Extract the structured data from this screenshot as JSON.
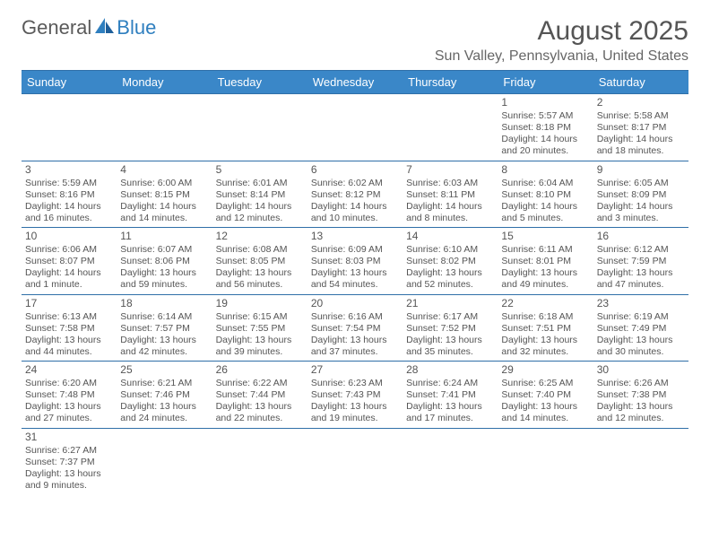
{
  "logo": {
    "text1": "General",
    "text2": "Blue",
    "accent": "#2f7fbf"
  },
  "title": "August 2025",
  "location": "Sun Valley, Pennsylvania, United States",
  "header_bg": "#3a87c8",
  "border_color": "#2f6fa8",
  "weekdays": [
    "Sunday",
    "Monday",
    "Tuesday",
    "Wednesday",
    "Thursday",
    "Friday",
    "Saturday"
  ],
  "weeks": [
    [
      null,
      null,
      null,
      null,
      null,
      {
        "n": "1",
        "sr": "Sunrise: 5:57 AM",
        "ss": "Sunset: 8:18 PM",
        "d1": "Daylight: 14 hours",
        "d2": "and 20 minutes."
      },
      {
        "n": "2",
        "sr": "Sunrise: 5:58 AM",
        "ss": "Sunset: 8:17 PM",
        "d1": "Daylight: 14 hours",
        "d2": "and 18 minutes."
      }
    ],
    [
      {
        "n": "3",
        "sr": "Sunrise: 5:59 AM",
        "ss": "Sunset: 8:16 PM",
        "d1": "Daylight: 14 hours",
        "d2": "and 16 minutes."
      },
      {
        "n": "4",
        "sr": "Sunrise: 6:00 AM",
        "ss": "Sunset: 8:15 PM",
        "d1": "Daylight: 14 hours",
        "d2": "and 14 minutes."
      },
      {
        "n": "5",
        "sr": "Sunrise: 6:01 AM",
        "ss": "Sunset: 8:14 PM",
        "d1": "Daylight: 14 hours",
        "d2": "and 12 minutes."
      },
      {
        "n": "6",
        "sr": "Sunrise: 6:02 AM",
        "ss": "Sunset: 8:12 PM",
        "d1": "Daylight: 14 hours",
        "d2": "and 10 minutes."
      },
      {
        "n": "7",
        "sr": "Sunrise: 6:03 AM",
        "ss": "Sunset: 8:11 PM",
        "d1": "Daylight: 14 hours",
        "d2": "and 8 minutes."
      },
      {
        "n": "8",
        "sr": "Sunrise: 6:04 AM",
        "ss": "Sunset: 8:10 PM",
        "d1": "Daylight: 14 hours",
        "d2": "and 5 minutes."
      },
      {
        "n": "9",
        "sr": "Sunrise: 6:05 AM",
        "ss": "Sunset: 8:09 PM",
        "d1": "Daylight: 14 hours",
        "d2": "and 3 minutes."
      }
    ],
    [
      {
        "n": "10",
        "sr": "Sunrise: 6:06 AM",
        "ss": "Sunset: 8:07 PM",
        "d1": "Daylight: 14 hours",
        "d2": "and 1 minute."
      },
      {
        "n": "11",
        "sr": "Sunrise: 6:07 AM",
        "ss": "Sunset: 8:06 PM",
        "d1": "Daylight: 13 hours",
        "d2": "and 59 minutes."
      },
      {
        "n": "12",
        "sr": "Sunrise: 6:08 AM",
        "ss": "Sunset: 8:05 PM",
        "d1": "Daylight: 13 hours",
        "d2": "and 56 minutes."
      },
      {
        "n": "13",
        "sr": "Sunrise: 6:09 AM",
        "ss": "Sunset: 8:03 PM",
        "d1": "Daylight: 13 hours",
        "d2": "and 54 minutes."
      },
      {
        "n": "14",
        "sr": "Sunrise: 6:10 AM",
        "ss": "Sunset: 8:02 PM",
        "d1": "Daylight: 13 hours",
        "d2": "and 52 minutes."
      },
      {
        "n": "15",
        "sr": "Sunrise: 6:11 AM",
        "ss": "Sunset: 8:01 PM",
        "d1": "Daylight: 13 hours",
        "d2": "and 49 minutes."
      },
      {
        "n": "16",
        "sr": "Sunrise: 6:12 AM",
        "ss": "Sunset: 7:59 PM",
        "d1": "Daylight: 13 hours",
        "d2": "and 47 minutes."
      }
    ],
    [
      {
        "n": "17",
        "sr": "Sunrise: 6:13 AM",
        "ss": "Sunset: 7:58 PM",
        "d1": "Daylight: 13 hours",
        "d2": "and 44 minutes."
      },
      {
        "n": "18",
        "sr": "Sunrise: 6:14 AM",
        "ss": "Sunset: 7:57 PM",
        "d1": "Daylight: 13 hours",
        "d2": "and 42 minutes."
      },
      {
        "n": "19",
        "sr": "Sunrise: 6:15 AM",
        "ss": "Sunset: 7:55 PM",
        "d1": "Daylight: 13 hours",
        "d2": "and 39 minutes."
      },
      {
        "n": "20",
        "sr": "Sunrise: 6:16 AM",
        "ss": "Sunset: 7:54 PM",
        "d1": "Daylight: 13 hours",
        "d2": "and 37 minutes."
      },
      {
        "n": "21",
        "sr": "Sunrise: 6:17 AM",
        "ss": "Sunset: 7:52 PM",
        "d1": "Daylight: 13 hours",
        "d2": "and 35 minutes."
      },
      {
        "n": "22",
        "sr": "Sunrise: 6:18 AM",
        "ss": "Sunset: 7:51 PM",
        "d1": "Daylight: 13 hours",
        "d2": "and 32 minutes."
      },
      {
        "n": "23",
        "sr": "Sunrise: 6:19 AM",
        "ss": "Sunset: 7:49 PM",
        "d1": "Daylight: 13 hours",
        "d2": "and 30 minutes."
      }
    ],
    [
      {
        "n": "24",
        "sr": "Sunrise: 6:20 AM",
        "ss": "Sunset: 7:48 PM",
        "d1": "Daylight: 13 hours",
        "d2": "and 27 minutes."
      },
      {
        "n": "25",
        "sr": "Sunrise: 6:21 AM",
        "ss": "Sunset: 7:46 PM",
        "d1": "Daylight: 13 hours",
        "d2": "and 24 minutes."
      },
      {
        "n": "26",
        "sr": "Sunrise: 6:22 AM",
        "ss": "Sunset: 7:44 PM",
        "d1": "Daylight: 13 hours",
        "d2": "and 22 minutes."
      },
      {
        "n": "27",
        "sr": "Sunrise: 6:23 AM",
        "ss": "Sunset: 7:43 PM",
        "d1": "Daylight: 13 hours",
        "d2": "and 19 minutes."
      },
      {
        "n": "28",
        "sr": "Sunrise: 6:24 AM",
        "ss": "Sunset: 7:41 PM",
        "d1": "Daylight: 13 hours",
        "d2": "and 17 minutes."
      },
      {
        "n": "29",
        "sr": "Sunrise: 6:25 AM",
        "ss": "Sunset: 7:40 PM",
        "d1": "Daylight: 13 hours",
        "d2": "and 14 minutes."
      },
      {
        "n": "30",
        "sr": "Sunrise: 6:26 AM",
        "ss": "Sunset: 7:38 PM",
        "d1": "Daylight: 13 hours",
        "d2": "and 12 minutes."
      }
    ],
    [
      {
        "n": "31",
        "sr": "Sunrise: 6:27 AM",
        "ss": "Sunset: 7:37 PM",
        "d1": "Daylight: 13 hours",
        "d2": "and 9 minutes."
      },
      null,
      null,
      null,
      null,
      null,
      null
    ]
  ]
}
